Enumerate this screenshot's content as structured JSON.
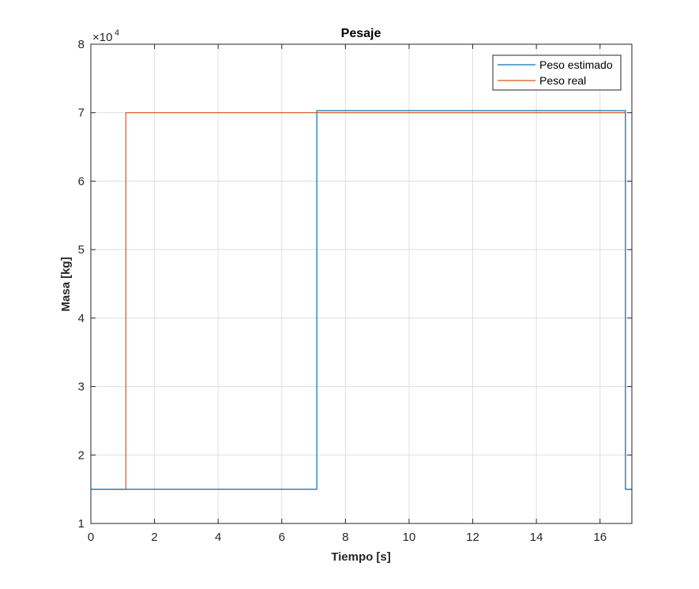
{
  "chart_data": {
    "type": "line",
    "title": "Pesaje",
    "xlabel": "Tiempo [s]",
    "ylabel": "Masa [kg]",
    "exponent_base": "×10",
    "exponent_power": "4",
    "xlim": [
      0,
      17
    ],
    "ylim": [
      1,
      8
    ],
    "y_scale_factor": 10000,
    "xticks": [
      0,
      2,
      4,
      6,
      8,
      10,
      12,
      14,
      16
    ],
    "xtick_labels": [
      "0",
      "2",
      "4",
      "6",
      "8",
      "10",
      "12",
      "14",
      "16"
    ],
    "yticks": [
      1,
      2,
      3,
      4,
      5,
      6,
      7,
      8
    ],
    "ytick_labels": [
      "1",
      "2",
      "3",
      "4",
      "5",
      "6",
      "7",
      "8"
    ],
    "grid": true,
    "legend_position": "top-right",
    "series": [
      {
        "name": "Peso estimado",
        "color": "#0072bd",
        "points": [
          [
            0,
            1.5
          ],
          [
            7.1,
            1.5
          ],
          [
            7.1,
            7.03
          ],
          [
            16.8,
            7.03
          ],
          [
            16.8,
            1.5
          ],
          [
            17,
            1.5
          ]
        ]
      },
      {
        "name": "Peso real",
        "color": "#d95319",
        "points": [
          [
            0,
            1.5
          ],
          [
            1.1,
            1.5
          ],
          [
            1.1,
            7.0
          ],
          [
            16.8,
            7.0
          ],
          [
            16.8,
            1.5
          ],
          [
            17,
            1.5
          ]
        ]
      }
    ]
  }
}
